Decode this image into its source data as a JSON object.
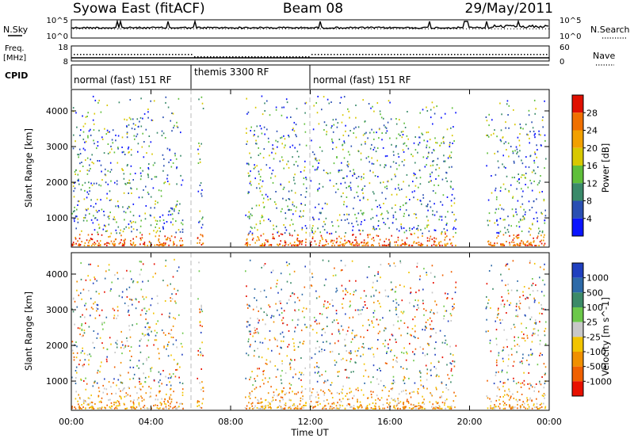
{
  "header": {
    "station": "Syowa East (fitACF)",
    "beam": "Beam 08",
    "date": "29/May/2011"
  },
  "left_labels": {
    "nsky": "N.Sky",
    "freq_line1": "Freq.",
    "freq_line2": "[MHz]",
    "cpid": "CPID"
  },
  "right_labels": {
    "nsearch": "N.Search",
    "nave": "Nave"
  },
  "noise_panel": {
    "left_ticks": [
      "10^5",
      "10^0"
    ],
    "right_ticks": [
      "10^5",
      "10^0"
    ]
  },
  "freq_panel": {
    "left_ticks": [
      "18",
      "8"
    ],
    "right_ticks": [
      "60",
      "0"
    ]
  },
  "cpid_segments": [
    {
      "label": "normal (fast) 151 RF",
      "start_hour": 0,
      "end_hour": 6
    },
    {
      "label": "themis 3300 RF",
      "start_hour": 6,
      "end_hour": 12
    },
    {
      "label": "normal (fast) 151 RF",
      "start_hour": 12,
      "end_hour": 24
    }
  ],
  "x_axis": {
    "title": "Time UT",
    "ticks": [
      "00:00",
      "04:00",
      "08:00",
      "12:00",
      "16:00",
      "20:00",
      "00:00"
    ]
  },
  "y_axis": {
    "title": "Slant Range [km]",
    "ticks": [
      "1000",
      "2000",
      "3000",
      "4000"
    ]
  },
  "power_scale": {
    "title": "Power [dB]",
    "labels": [
      "4",
      "8",
      "12",
      "16",
      "20",
      "24",
      "28"
    ],
    "colors": [
      "#0a14ff",
      "#2a4fb3",
      "#3a8a6a",
      "#5fbf3a",
      "#d8c800",
      "#f2a000",
      "#f07000",
      "#e01000"
    ]
  },
  "velocity_scale": {
    "title": "Velocity [m s^-1]",
    "labels": [
      "1000",
      "500",
      "100",
      "25",
      "-25",
      "-100",
      "-500",
      "-1000"
    ],
    "colors": [
      "#1f3fbf",
      "#2d6aa8",
      "#3c8a68",
      "#6cc84a",
      "#c8c8c8",
      "#f2c400",
      "#f09000",
      "#f06000",
      "#e81000"
    ]
  },
  "chart_data": {
    "type": "heatmap",
    "x_range_hours": [
      0,
      24
    ],
    "y_range_km": [
      180,
      4600
    ],
    "activity_windows_hours": [
      [
        0.0,
        5.6
      ],
      [
        6.3,
        6.6
      ],
      [
        8.7,
        11.8
      ],
      [
        12.0,
        19.3
      ],
      [
        20.8,
        23.8
      ]
    ]
  }
}
